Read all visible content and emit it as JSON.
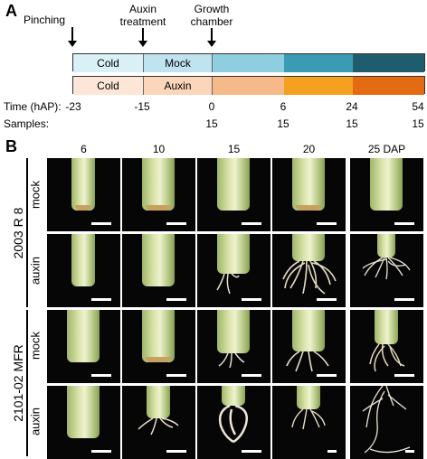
{
  "panel_a": {
    "label": "A",
    "events": {
      "pinching": "Pinching",
      "auxin_treatment_line1": "Auxin",
      "auxin_treatment_line2": "treatment",
      "growth_chamber_line1": "Growth",
      "growth_chamber_line2": "chamber"
    },
    "mock_bar": {
      "cold": "Cold",
      "treatment": "Mock"
    },
    "auxin_bar": {
      "cold": "Cold",
      "treatment": "Auxin"
    },
    "colors": {
      "mock_cold": "#d9f0f7",
      "mock_treat": "#bfe3ef",
      "mock_1": "#8fcde0",
      "mock_2": "#3a9bb3",
      "mock_3": "#1f5c6e",
      "auxin_cold": "#fde6d7",
      "auxin_treat": "#fbd6bb",
      "auxin_1": "#f6b98a",
      "auxin_2": "#f4a020",
      "auxin_3": "#e56b12"
    },
    "time_row": {
      "label": "Time (hAP):",
      "values": [
        "-23",
        "-15",
        "0",
        "6",
        "24",
        "54"
      ]
    },
    "samples_row": {
      "label": "Samples:",
      "values": [
        "15",
        "15",
        "15",
        "15"
      ]
    }
  },
  "panel_b": {
    "label": "B",
    "days": [
      "6",
      "10",
      "15",
      "20",
      "25 DAP"
    ],
    "genotypes": [
      "2003 R 8",
      "2101-02 MFR"
    ],
    "treatments": [
      "mock",
      "auxin",
      "mock",
      "auxin"
    ]
  }
}
